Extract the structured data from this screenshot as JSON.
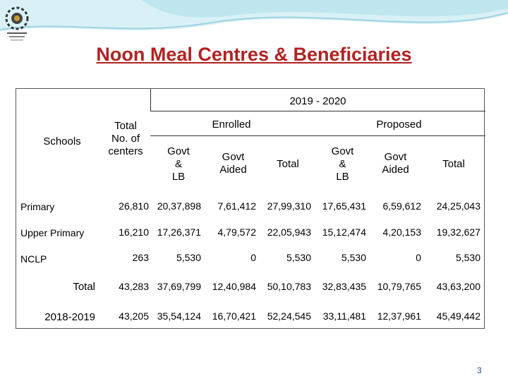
{
  "title": "Noon Meal Centres & Beneficiaries",
  "year": "2019 - 2020",
  "headers": {
    "schools": "Schools",
    "total_centers": [
      "Total",
      "No. of",
      "centers"
    ],
    "enrolled": "Enrolled",
    "proposed": "Proposed",
    "govt_lb": [
      "Govt",
      "&",
      "LB"
    ],
    "govt_aided": [
      "Govt",
      "Aided"
    ],
    "total": "Total"
  },
  "rows": [
    {
      "label": "Primary",
      "values": [
        "26,810",
        "20,37,898",
        "7,61,412",
        "27,99,310",
        "17,65,431",
        "6,59,612",
        "24,25,043"
      ]
    },
    {
      "label": "Upper Primary",
      "values": [
        "16,210",
        "17,26,371",
        "4,79,572",
        "22,05,943",
        "15,12,474",
        "4,20,153",
        "19,32,627"
      ]
    },
    {
      "label": "NCLP",
      "values": [
        "263",
        "5,530",
        "0",
        "5,530",
        "5,530",
        "0",
        "5,530"
      ]
    },
    {
      "label": "Total",
      "values": [
        "43,283",
        "37,69,799",
        "12,40,984",
        "50,10,783",
        "32,83,435",
        "10,79,765",
        "43,63,200"
      ]
    },
    {
      "label": "2018-2019",
      "values": [
        "43,205",
        "35,54,124",
        "16,70,421",
        "52,24,545",
        "33,11,481",
        "12,37,961",
        "45,49,442"
      ]
    }
  ],
  "page_number": "3",
  "colors": {
    "title": "#b22222",
    "wave": "#bfe6ef",
    "page_number": "#2b4c9a"
  }
}
